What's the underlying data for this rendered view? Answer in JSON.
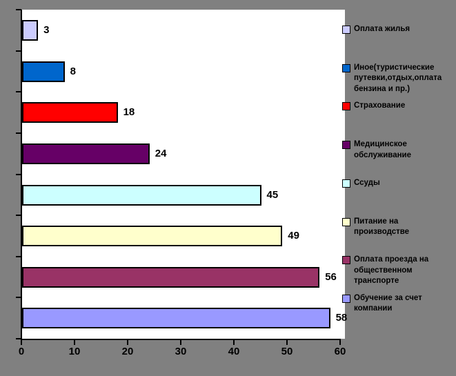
{
  "chart_data": {
    "type": "bar",
    "orientation": "horizontal",
    "title": "",
    "xlabel": "",
    "ylabel": "",
    "grid": false,
    "legend_position": "right",
    "xlim": [
      0,
      60
    ],
    "xticks": [
      "0",
      "10",
      "20",
      "30",
      "40",
      "50",
      "60"
    ],
    "categories": [
      "Оплата жилья",
      "Иное(туристические путевки,отдых,оплата бензина и пр.)",
      "Страхование",
      "Медицинское обслуживание",
      "Ссуды",
      "Питание на производстве",
      "Оплата проезда на общественном транспорте",
      "Обучение за счет компании"
    ],
    "values": [
      3,
      8,
      18,
      24,
      45,
      49,
      56,
      58
    ],
    "data_labels": [
      "3",
      "8",
      "18",
      "24",
      "45",
      "49",
      "56",
      "58"
    ],
    "bar_colors": [
      "#CCCCFF",
      "#0066CC",
      "#FF0000",
      "#660066",
      "#CCFFFF",
      "#FFFFCC",
      "#993366",
      "#9999FF"
    ]
  },
  "colors": {
    "chart_background": "#808080",
    "plot_background": "#FFFFFF",
    "axis": "#000000",
    "text": "#000000"
  }
}
